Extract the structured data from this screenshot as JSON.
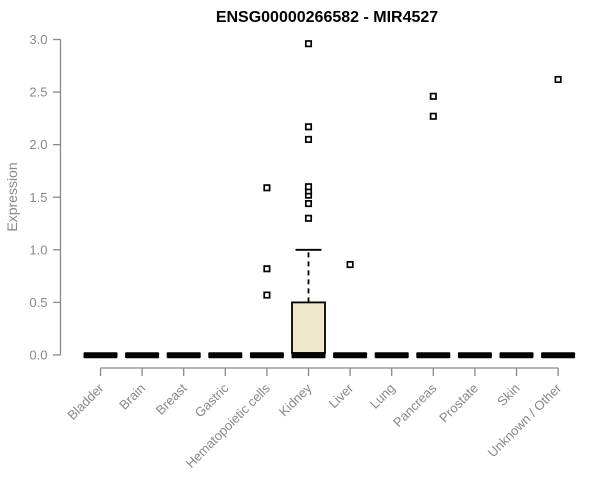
{
  "chart_data": {
    "type": "boxplot",
    "title": "ENSG00000266582 - MIR4527",
    "ylabel": "Expression",
    "xlabel": "",
    "ylim": [
      0.0,
      3.0
    ],
    "yticks": [
      0.0,
      0.5,
      1.0,
      1.5,
      2.0,
      2.5,
      3.0
    ],
    "grid": false,
    "legend": false,
    "categories": [
      "Bladder",
      "Brain",
      "Breast",
      "Gastric",
      "Hematopoietic cells",
      "Kidney",
      "Liver",
      "Lung",
      "Pancreas",
      "Prostate",
      "Skin",
      "Unknown / Other"
    ],
    "boxes": [
      {
        "category": "Bladder",
        "median": 0,
        "q1": 0,
        "q3": 0,
        "whisker_low": 0,
        "whisker_high": 0,
        "outliers": []
      },
      {
        "category": "Brain",
        "median": 0,
        "q1": 0,
        "q3": 0,
        "whisker_low": 0,
        "whisker_high": 0,
        "outliers": []
      },
      {
        "category": "Breast",
        "median": 0,
        "q1": 0,
        "q3": 0,
        "whisker_low": 0,
        "whisker_high": 0,
        "outliers": []
      },
      {
        "category": "Gastric",
        "median": 0,
        "q1": 0,
        "q3": 0,
        "whisker_low": 0,
        "whisker_high": 0,
        "outliers": []
      },
      {
        "category": "Hematopoietic cells",
        "median": 0,
        "q1": 0,
        "q3": 0,
        "whisker_low": 0,
        "whisker_high": 0,
        "outliers": [
          0.57,
          0.82,
          1.59
        ]
      },
      {
        "category": "Kidney",
        "median": 0,
        "q1": 0,
        "q3": 0.5,
        "whisker_low": 0,
        "whisker_high": 1.0,
        "outliers": [
          1.3,
          1.44,
          1.52,
          1.56,
          1.6,
          2.05,
          2.17,
          2.96
        ]
      },
      {
        "category": "Liver",
        "median": 0,
        "q1": 0,
        "q3": 0,
        "whisker_low": 0,
        "whisker_high": 0,
        "outliers": [
          0.86
        ]
      },
      {
        "category": "Lung",
        "median": 0,
        "q1": 0,
        "q3": 0,
        "whisker_low": 0,
        "whisker_high": 0,
        "outliers": []
      },
      {
        "category": "Pancreas",
        "median": 0,
        "q1": 0,
        "q3": 0,
        "whisker_low": 0,
        "whisker_high": 0,
        "outliers": [
          2.27,
          2.46
        ]
      },
      {
        "category": "Prostate",
        "median": 0,
        "q1": 0,
        "q3": 0,
        "whisker_low": 0,
        "whisker_high": 0,
        "outliers": []
      },
      {
        "category": "Skin",
        "median": 0,
        "q1": 0,
        "q3": 0,
        "whisker_low": 0,
        "whisker_high": 0,
        "outliers": []
      },
      {
        "category": "Unknown / Other",
        "median": 0,
        "q1": 0,
        "q3": 0,
        "whisker_low": 0,
        "whisker_high": 0,
        "outliers": [
          2.62
        ]
      }
    ],
    "colors": {
      "box_fill": "#EDE8CB",
      "box_stroke": "#000000",
      "axis_gray": "#888888",
      "title_color": "#000000",
      "outlier_fill": "#FFFFFF",
      "background": "#FFFFFF"
    }
  }
}
